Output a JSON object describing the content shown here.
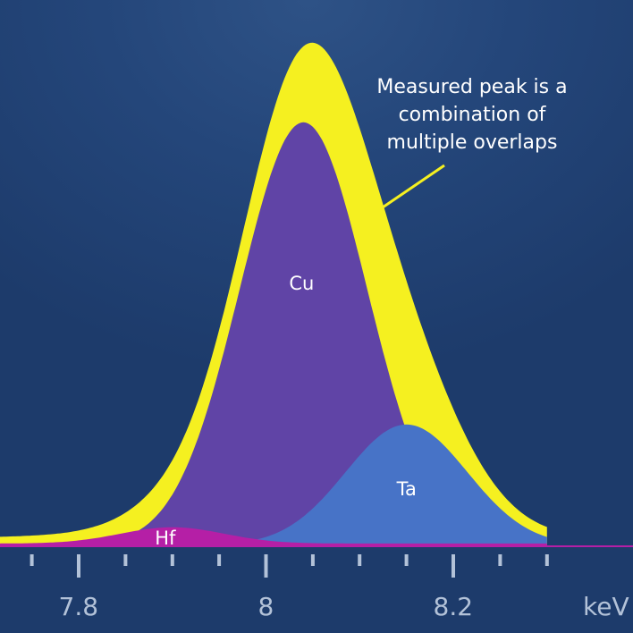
{
  "chart_data": {
    "type": "area",
    "title": "",
    "xlabel": "keV",
    "ylabel": "",
    "xlim": [
      7.7,
      8.3
    ],
    "ylim": [
      0,
      1
    ],
    "grid": false,
    "x_ticks": [
      7.8,
      8,
      8.2
    ],
    "x_tick_labels": [
      "7.8",
      "8",
      "8.2"
    ],
    "series": [
      {
        "name": "Cu",
        "peak_center_kev": 8.04,
        "peak_height": 0.91,
        "peak_width_kev": 0.068,
        "color": "#6044a6"
      },
      {
        "name": "Ta",
        "peak_center_kev": 8.15,
        "peak_height": 0.26,
        "peak_width_kev": 0.065,
        "color": "#4773c7"
      },
      {
        "name": "Hf",
        "peak_center_kev": 7.9,
        "peak_height": 0.035,
        "peak_width_kev": 0.055,
        "color": "#b51fa6"
      },
      {
        "name": "",
        "description": "measured peak (sum)",
        "color": "#f5f020"
      }
    ],
    "annotation": {
      "lines": [
        "Measured peak is a",
        "combination of",
        "multiple overlaps"
      ],
      "color": "#ffffff"
    }
  },
  "colors": {
    "background": "#1f3e70",
    "measured": "#f5f020",
    "cu": "#6044a6",
    "ta": "#4773c7",
    "hf": "#b51fa6",
    "axis": "#b3c2d8"
  }
}
